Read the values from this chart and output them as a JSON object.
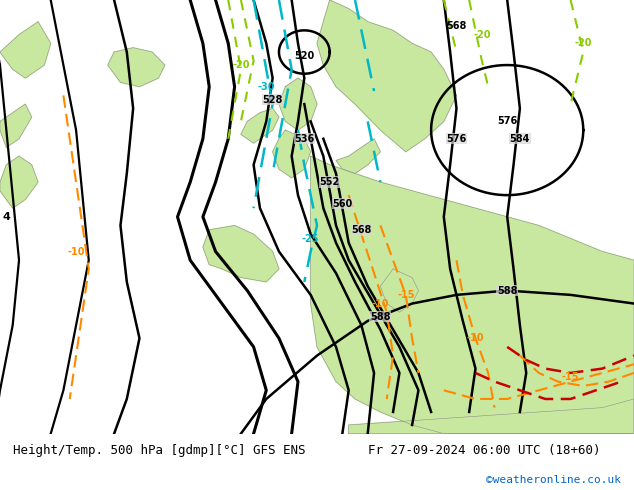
{
  "title_left": "Height/Temp. 500 hPa [gdmp][°C] GFS ENS",
  "title_right": "Fr 27-09-2024 06:00 UTC (18+60)",
  "credit": "©weatheronline.co.uk",
  "ocean_color": "#d8d8d8",
  "land_color": "#c8e8a0",
  "land_color_dark": "#b0c890",
  "coast_color": "#909090",
  "label_font_size": 9,
  "credit_color": "#0066cc",
  "fig_width": 6.34,
  "fig_height": 4.9,
  "dpi": 100,
  "bottom_bar_color": "#e8e8e8",
  "contour_black_color": "#000000",
  "contour_orange_color": "#ff8800",
  "contour_cyan_color": "#00b8c8",
  "contour_green_dash_color": "#88cc00",
  "contour_red_color": "#cc0000"
}
